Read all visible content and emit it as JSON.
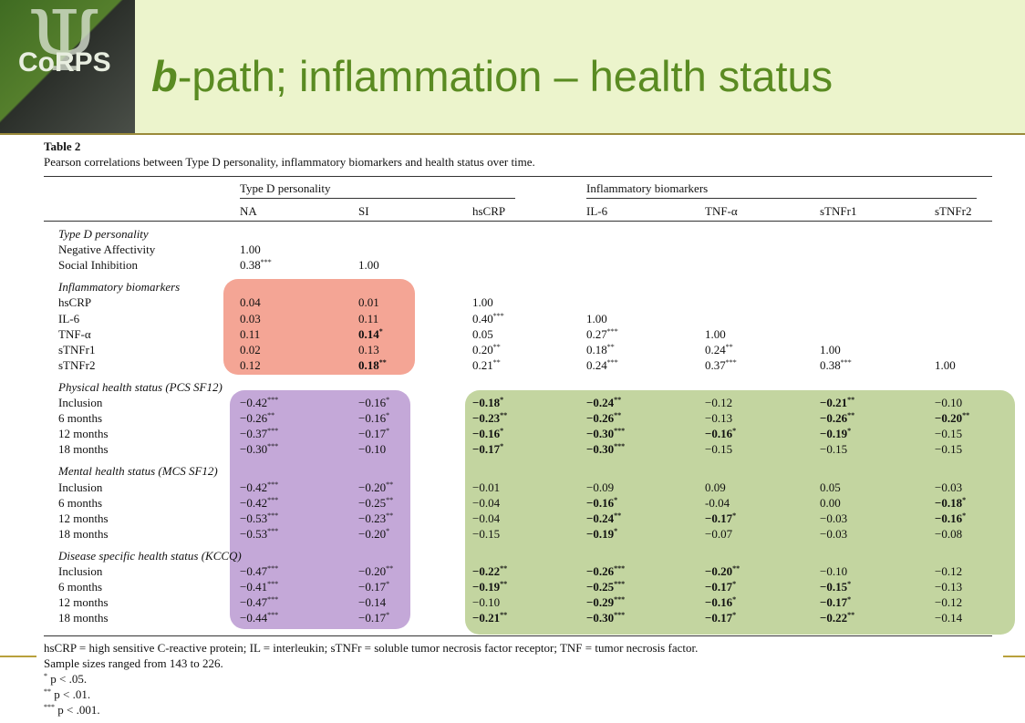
{
  "title_prefix": "b",
  "title_rest": "-path; inflammation – health status",
  "logo_text": "CoRPS",
  "table_label": "Table 2",
  "caption": "Pearson correlations between Type D personality, inflammatory biomarkers and health status over time.",
  "group_headers": [
    "Type D personality",
    "Inflammatory biomarkers"
  ],
  "columns": [
    "NA",
    "SI",
    "hsCRP",
    "IL-6",
    "TNF-α",
    "sTNFr1",
    "sTNFr2"
  ],
  "sections": [
    {
      "title": "Type D personality",
      "rows": [
        {
          "label": "Negative Affectivity",
          "cells": [
            {
              "v": "1.00"
            }
          ]
        },
        {
          "label": "Social Inhibition",
          "cells": [
            {
              "v": "0.38",
              "s": "***"
            },
            {
              "v": "1.00"
            }
          ]
        }
      ]
    },
    {
      "title": "Inflammatory biomarkers",
      "rows": [
        {
          "label": "hsCRP",
          "cells": [
            {
              "v": "0.04"
            },
            {
              "v": "0.01"
            },
            {
              "v": "1.00"
            }
          ]
        },
        {
          "label": "IL-6",
          "cells": [
            {
              "v": "0.03"
            },
            {
              "v": "0.11"
            },
            {
              "v": "0.40",
              "s": "***"
            },
            {
              "v": "1.00"
            }
          ]
        },
        {
          "label": "TNF-α",
          "cells": [
            {
              "v": "0.11"
            },
            {
              "v": "0.14",
              "s": "*",
              "b": true
            },
            {
              "v": "0.05"
            },
            {
              "v": "0.27",
              "s": "***"
            },
            {
              "v": "1.00"
            }
          ]
        },
        {
          "label": "sTNFr1",
          "cells": [
            {
              "v": "0.02"
            },
            {
              "v": "0.13"
            },
            {
              "v": "0.20",
              "s": "**"
            },
            {
              "v": "0.18",
              "s": "**"
            },
            {
              "v": "0.24",
              "s": "**"
            },
            {
              "v": "1.00"
            }
          ]
        },
        {
          "label": "sTNFr2",
          "cells": [
            {
              "v": "0.12"
            },
            {
              "v": "0.18",
              "s": "**",
              "b": true
            },
            {
              "v": "0.21",
              "s": "**"
            },
            {
              "v": "0.24",
              "s": "***"
            },
            {
              "v": "0.37",
              "s": "***"
            },
            {
              "v": "0.38",
              "s": "***"
            },
            {
              "v": "1.00"
            }
          ]
        }
      ]
    },
    {
      "title": "Physical health status (PCS SF12)",
      "rows": [
        {
          "label": "Inclusion",
          "cells": [
            {
              "v": "−0.42",
              "s": "***"
            },
            {
              "v": "−0.16",
              "s": "*"
            },
            {
              "v": "−0.18",
              "s": "*",
              "b": true
            },
            {
              "v": "−0.24",
              "s": "**",
              "b": true
            },
            {
              "v": "−0.12"
            },
            {
              "v": "−0.21",
              "s": "**",
              "b": true
            },
            {
              "v": "−0.10"
            }
          ]
        },
        {
          "label": "6 months",
          "cells": [
            {
              "v": "−0.26",
              "s": "**"
            },
            {
              "v": "−0.16",
              "s": "*"
            },
            {
              "v": "−0.23",
              "s": "**",
              "b": true
            },
            {
              "v": "−0.26",
              "s": "**",
              "b": true
            },
            {
              "v": "−0.13"
            },
            {
              "v": "−0.26",
              "s": "**",
              "b": true
            },
            {
              "v": "−0.20",
              "s": "**",
              "b": true
            }
          ]
        },
        {
          "label": "12 months",
          "cells": [
            {
              "v": "−0.37",
              "s": "***"
            },
            {
              "v": "−0.17",
              "s": "*"
            },
            {
              "v": "−0.16",
              "s": "*",
              "b": true
            },
            {
              "v": "−0.30",
              "s": "***",
              "b": true
            },
            {
              "v": "−0.16",
              "s": "*",
              "b": true
            },
            {
              "v": "−0.19",
              "s": "*",
              "b": true
            },
            {
              "v": "−0.15"
            }
          ]
        },
        {
          "label": "18 months",
          "cells": [
            {
              "v": "−0.30",
              "s": "***"
            },
            {
              "v": "−0.10"
            },
            {
              "v": "−0.17",
              "s": "*",
              "b": true
            },
            {
              "v": "−0.30",
              "s": "***",
              "b": true
            },
            {
              "v": "−0.15"
            },
            {
              "v": "−0.15"
            },
            {
              "v": "−0.15"
            }
          ]
        }
      ]
    },
    {
      "title": "Mental health status (MCS SF12)",
      "rows": [
        {
          "label": "Inclusion",
          "cells": [
            {
              "v": "−0.42",
              "s": "***"
            },
            {
              "v": "−0.20",
              "s": "**"
            },
            {
              "v": "−0.01"
            },
            {
              "v": "−0.09"
            },
            {
              "v": "0.09"
            },
            {
              "v": "0.05"
            },
            {
              "v": "−0.03"
            }
          ]
        },
        {
          "label": "6 months",
          "cells": [
            {
              "v": "−0.42",
              "s": "***"
            },
            {
              "v": "−0.25",
              "s": "**"
            },
            {
              "v": "−0.04"
            },
            {
              "v": "−0.16",
              "s": "*",
              "b": true
            },
            {
              "v": "-0.04"
            },
            {
              "v": "0.00"
            },
            {
              "v": "−0.18",
              "s": "*",
              "b": true
            }
          ]
        },
        {
          "label": "12 months",
          "cells": [
            {
              "v": "−0.53",
              "s": "***"
            },
            {
              "v": "−0.23",
              "s": "**"
            },
            {
              "v": "−0.04"
            },
            {
              "v": "−0.24",
              "s": "**",
              "b": true
            },
            {
              "v": "−0.17",
              "s": "*",
              "b": true
            },
            {
              "v": "−0.03"
            },
            {
              "v": "−0.16",
              "s": "*",
              "b": true
            }
          ]
        },
        {
          "label": "18 months",
          "cells": [
            {
              "v": "−0.53",
              "s": "***"
            },
            {
              "v": "−0.20",
              "s": "*"
            },
            {
              "v": "−0.15"
            },
            {
              "v": "−0.19",
              "s": "*",
              "b": true
            },
            {
              "v": "−0.07"
            },
            {
              "v": "−0.03"
            },
            {
              "v": "−0.08"
            }
          ]
        }
      ]
    },
    {
      "title": "Disease specific health status (KCCQ)",
      "rows": [
        {
          "label": "Inclusion",
          "cells": [
            {
              "v": "−0.47",
              "s": "***"
            },
            {
              "v": "−0.20",
              "s": "**"
            },
            {
              "v": "−0.22",
              "s": "**",
              "b": true
            },
            {
              "v": "−0.26",
              "s": "***",
              "b": true
            },
            {
              "v": "−0.20",
              "s": "**",
              "b": true
            },
            {
              "v": "−0.10"
            },
            {
              "v": "−0.12"
            }
          ]
        },
        {
          "label": "6 months",
          "cells": [
            {
              "v": "−0.41",
              "s": "***"
            },
            {
              "v": "−0.17",
              "s": "*"
            },
            {
              "v": "−0.19",
              "s": "**",
              "b": true
            },
            {
              "v": "−0.25",
              "s": "***",
              "b": true
            },
            {
              "v": "−0.17",
              "s": "*",
              "b": true
            },
            {
              "v": "−0.15",
              "s": "*",
              "b": true
            },
            {
              "v": "−0.13"
            }
          ]
        },
        {
          "label": "12 months",
          "cells": [
            {
              "v": "−0.47",
              "s": "***"
            },
            {
              "v": "−0.14"
            },
            {
              "v": "−0.10"
            },
            {
              "v": "−0.29",
              "s": "***",
              "b": true
            },
            {
              "v": "−0.16",
              "s": "*",
              "b": true
            },
            {
              "v": "−0.17",
              "s": "*",
              "b": true
            },
            {
              "v": "−0.12"
            }
          ]
        },
        {
          "label": "18 months",
          "cells": [
            {
              "v": "−0.44",
              "s": "***"
            },
            {
              "v": "−0.17",
              "s": "*"
            },
            {
              "v": "−0.21",
              "s": "**",
              "b": true
            },
            {
              "v": "−0.30",
              "s": "***",
              "b": true
            },
            {
              "v": "−0.17",
              "s": "*",
              "b": true
            },
            {
              "v": "−0.22",
              "s": "**",
              "b": true
            },
            {
              "v": "−0.14"
            }
          ]
        }
      ]
    }
  ],
  "footnotes": [
    "hsCRP = high sensitive C-reactive protein; IL = interleukin; sTNFr = soluble tumor necrosis factor receptor; TNF = tumor necrosis factor.",
    "Sample sizes ranged from 143 to 226.",
    {
      "mark": "*",
      "text": "p < .05."
    },
    {
      "mark": "**",
      "text": "p < .01."
    },
    {
      "mark": "***",
      "text": "p < .001."
    }
  ],
  "colors": {
    "title": "#5a8b22",
    "header_bg": "#ecf4cc",
    "highlight_red": "#f4a595",
    "highlight_purple": "#c4a8d8",
    "highlight_green": "#c3d5a0"
  }
}
